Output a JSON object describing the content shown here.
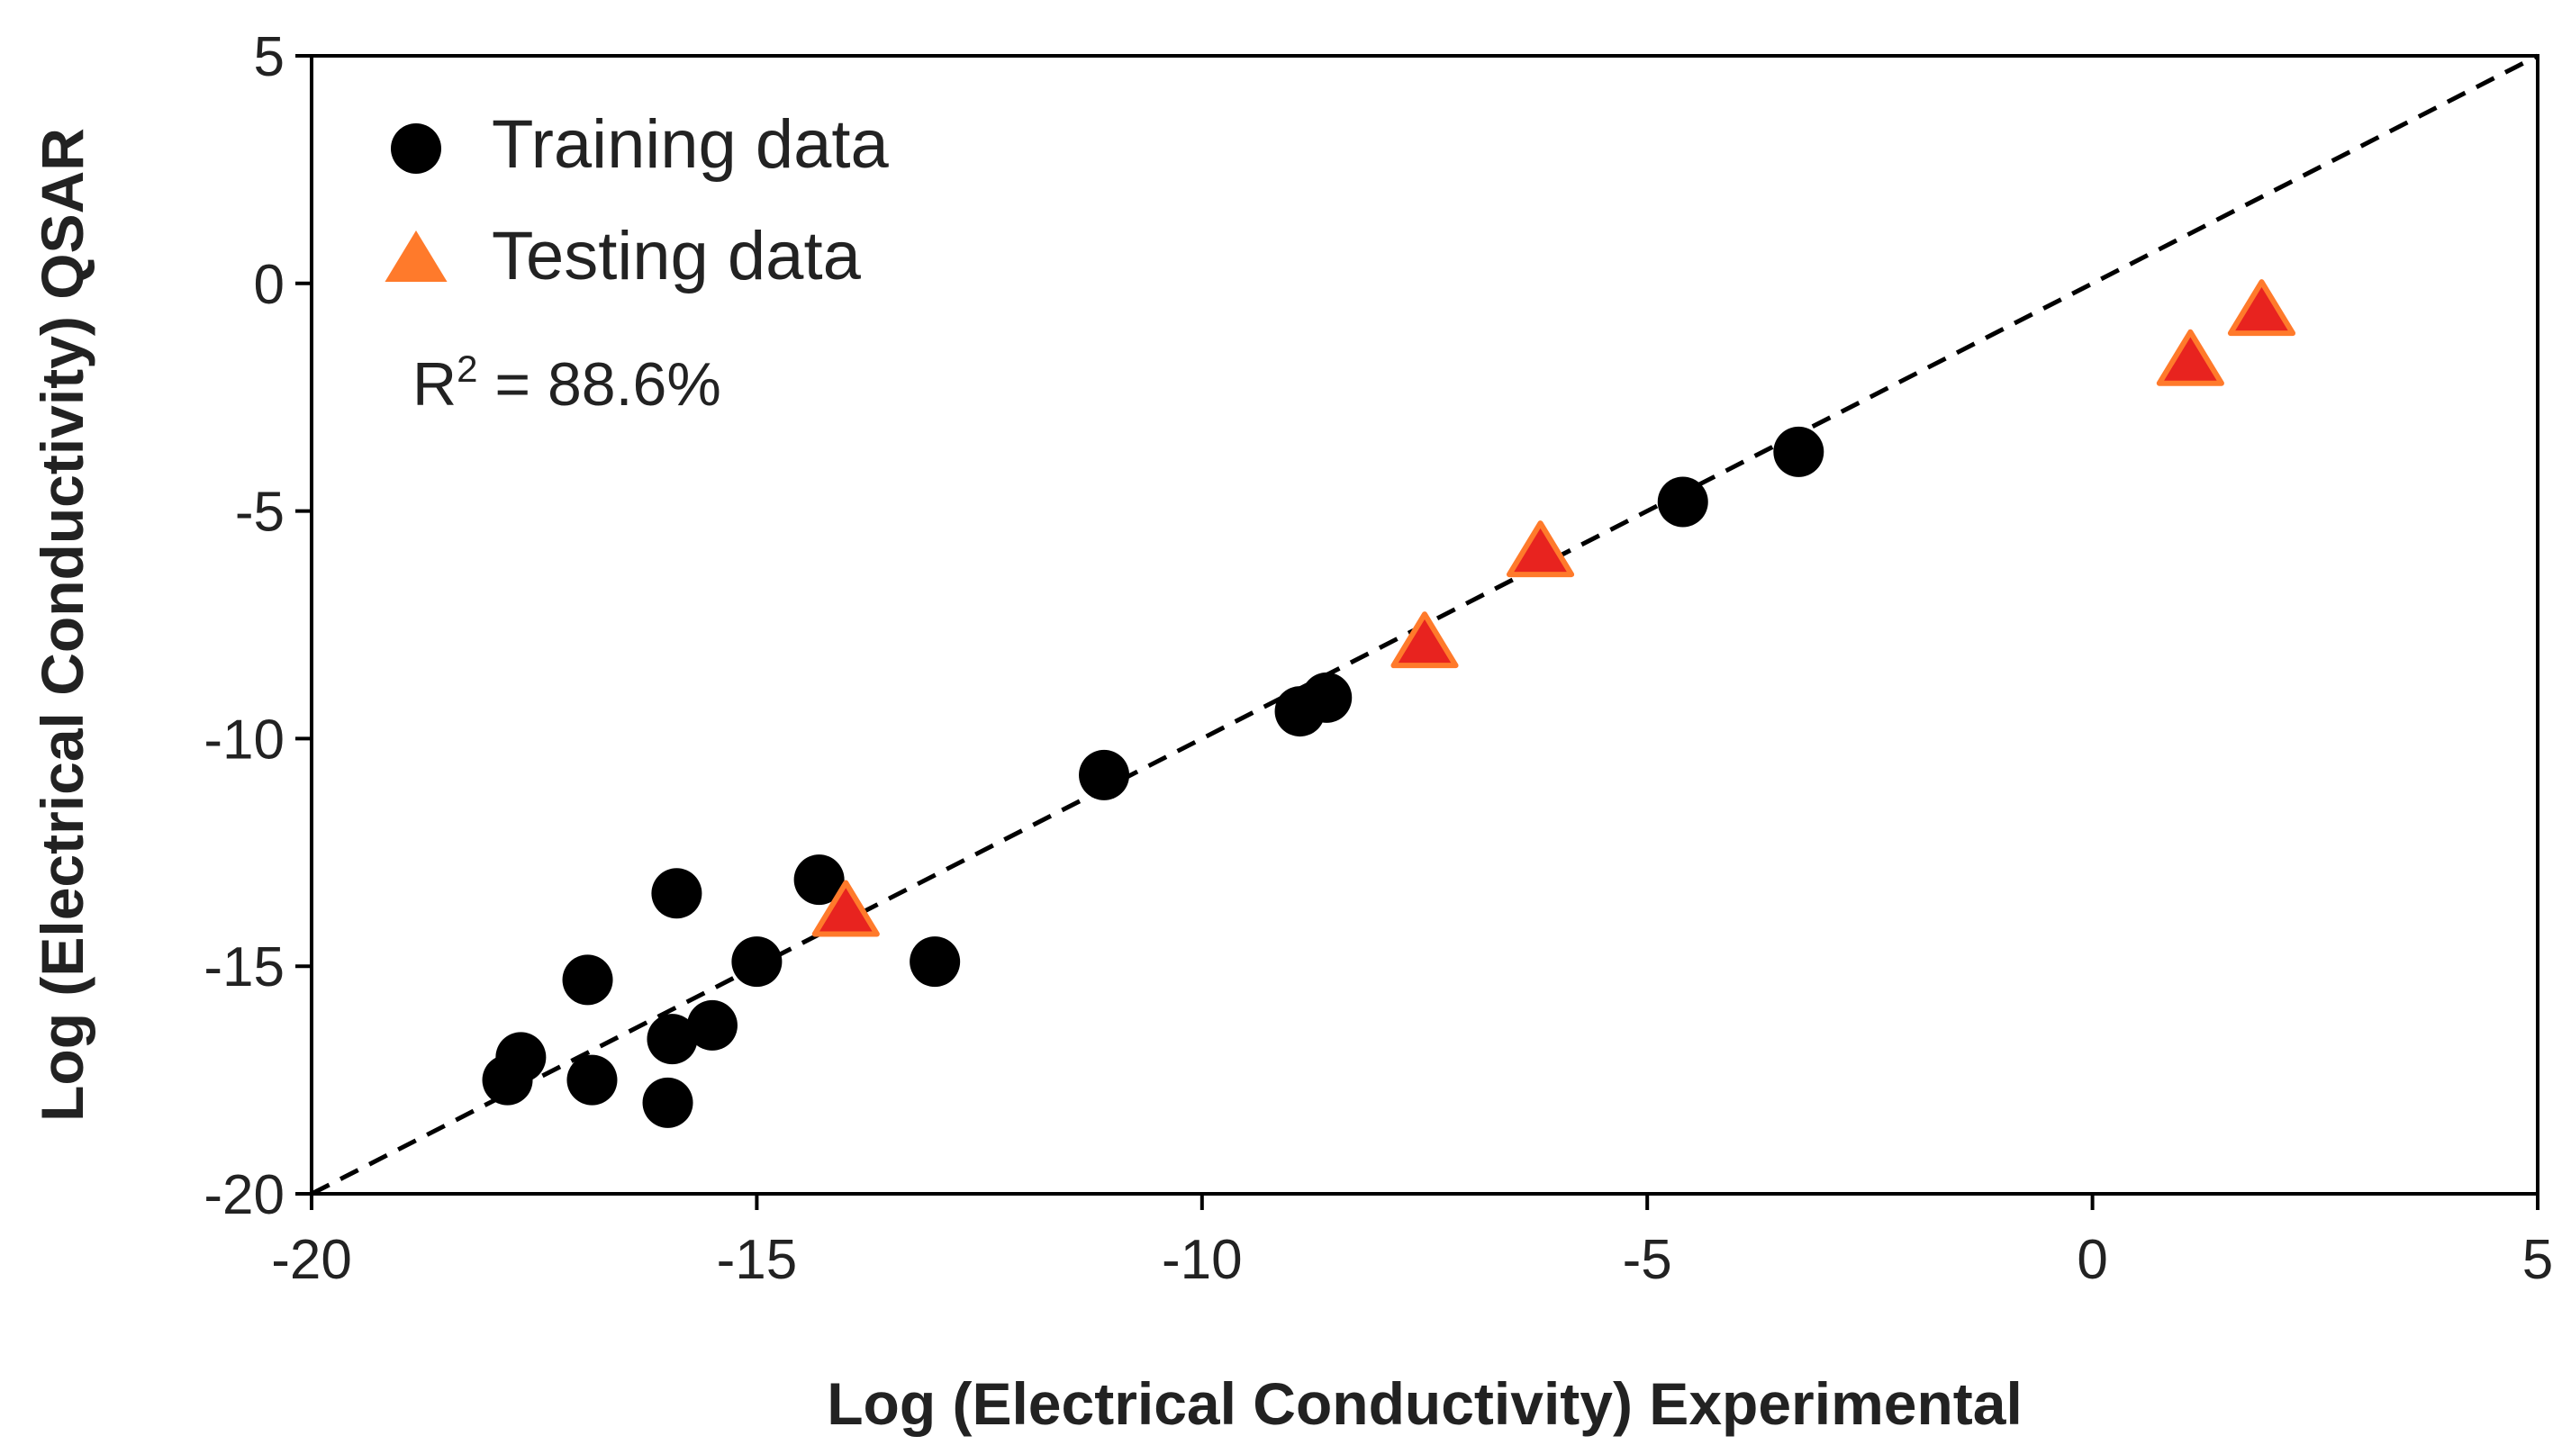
{
  "chart_data": {
    "type": "scatter",
    "xlabel": "Log (Electrical Conductivity) Experimental",
    "ylabel": "Log (Electrical Conductivity) QSAR",
    "xlim": [
      -20,
      5
    ],
    "ylim": [
      -20,
      5
    ],
    "xticks": [
      -20,
      -15,
      -10,
      -5,
      0,
      5
    ],
    "yticks": [
      5,
      0,
      -5,
      -10,
      -15,
      -20
    ],
    "grid": false,
    "legend_position": "top-left",
    "annotation": {
      "prefix": "R",
      "sup": "2",
      "suffix": " = 88.6%"
    },
    "reference_line": {
      "style": "dashed",
      "color": "#000000",
      "from": [
        -20,
        -20
      ],
      "to": [
        5,
        5
      ]
    },
    "series": [
      {
        "name": "Training data",
        "marker": "circle",
        "color": "#000000",
        "points": [
          [
            -17.8,
            -17.5
          ],
          [
            -17.65,
            -17.0
          ],
          [
            -16.9,
            -15.3
          ],
          [
            -16.85,
            -17.5
          ],
          [
            -16.0,
            -18.0
          ],
          [
            -15.95,
            -16.6
          ],
          [
            -15.9,
            -13.4
          ],
          [
            -15.5,
            -16.3
          ],
          [
            -15.0,
            -14.9
          ],
          [
            -14.3,
            -13.1
          ],
          [
            -13.0,
            -14.9
          ],
          [
            -11.1,
            -10.8
          ],
          [
            -8.9,
            -9.4
          ],
          [
            -8.6,
            -9.1
          ],
          [
            -4.6,
            -4.8
          ],
          [
            -3.3,
            -3.7
          ]
        ]
      },
      {
        "name": "Testing data",
        "marker": "triangle",
        "color": "#ff7a2b",
        "edge_color": "#e8231f",
        "points": [
          [
            -14.0,
            -13.8
          ],
          [
            -7.5,
            -7.9
          ],
          [
            -6.2,
            -5.9
          ],
          [
            1.1,
            -1.7
          ],
          [
            1.9,
            -0.6
          ]
        ]
      }
    ]
  }
}
